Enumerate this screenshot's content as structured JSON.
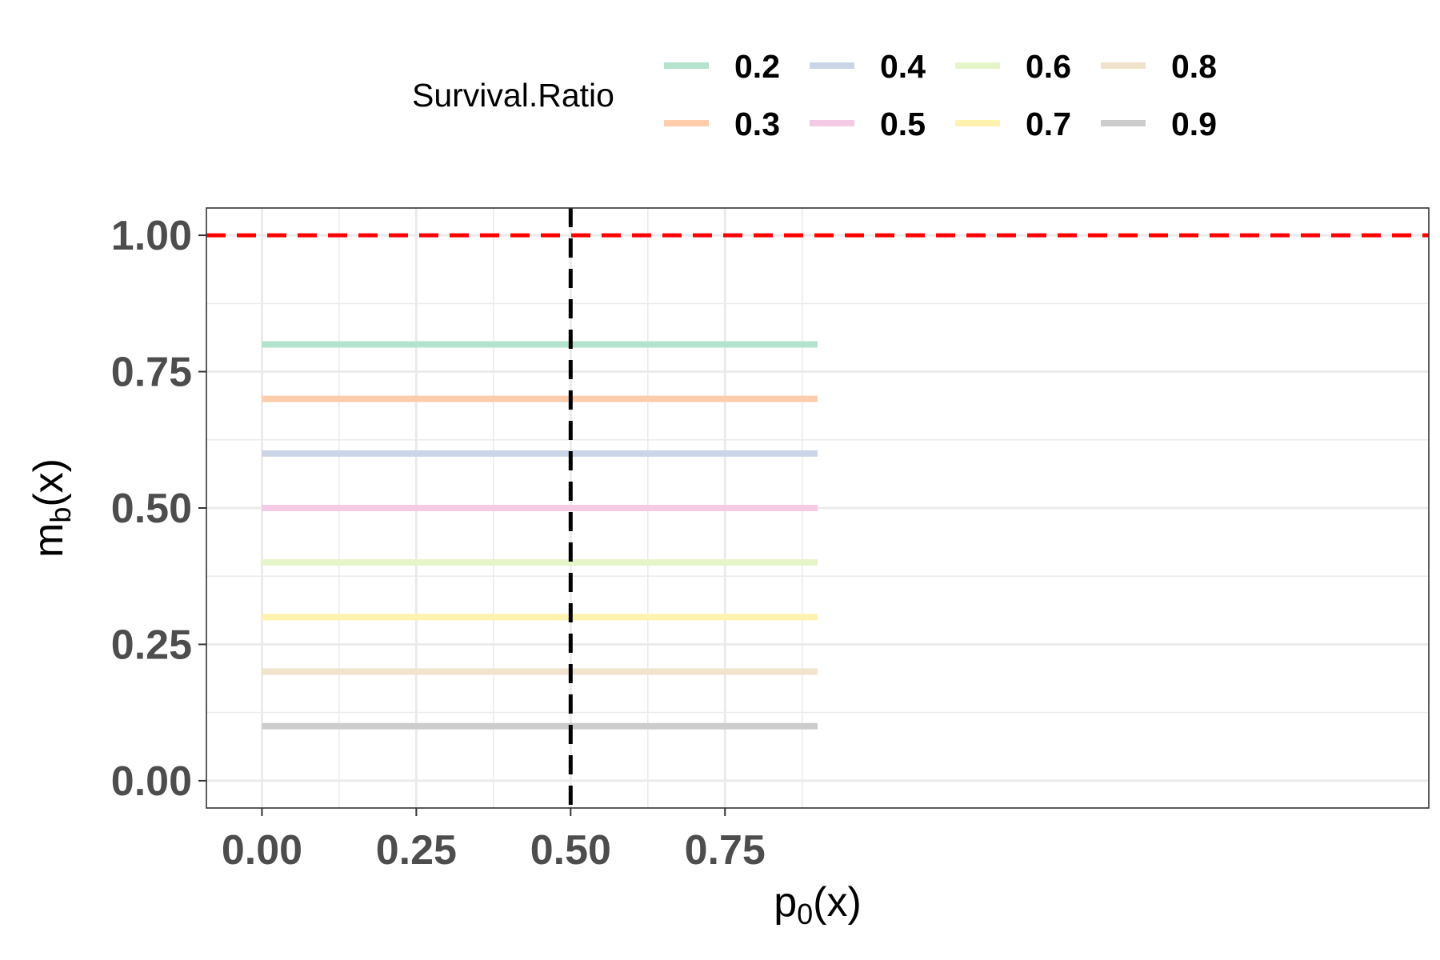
{
  "chart_data": {
    "type": "line",
    "xlabel": {
      "base": "p",
      "sub": "0",
      "suffix": "(x)"
    },
    "ylabel": {
      "base": "m",
      "sub": "b",
      "suffix": "(x)"
    },
    "xlim": [
      -0.09,
      1.89
    ],
    "ylim": [
      -0.05,
      1.05
    ],
    "x_ticks": [
      0.0,
      0.25,
      0.5,
      0.75
    ],
    "x_tick_labels": [
      "0.00",
      "0.25",
      "0.50",
      "0.75"
    ],
    "x_minor": [
      0.125,
      0.375,
      0.625,
      0.875
    ],
    "y_ticks": [
      0.0,
      0.25,
      0.5,
      0.75,
      1.0
    ],
    "y_tick_labels": [
      "0.00",
      "0.25",
      "0.50",
      "0.75",
      "1.00"
    ],
    "y_minor": [
      0.125,
      0.375,
      0.625,
      0.875
    ],
    "grid": true,
    "legend": {
      "title": "Survival.Ratio",
      "position": "top",
      "ncol": 4,
      "entries": [
        "0.2",
        "0.3",
        "0.4",
        "0.5",
        "0.6",
        "0.7",
        "0.8",
        "0.9"
      ]
    },
    "series": [
      {
        "name": "0.2",
        "color": "#b3e2cd",
        "x": [
          0,
          0.9
        ],
        "y": [
          0.8,
          0.8
        ]
      },
      {
        "name": "0.3",
        "color": "#fdcdac",
        "x": [
          0,
          0.9
        ],
        "y": [
          0.7,
          0.7
        ]
      },
      {
        "name": "0.4",
        "color": "#cbd5e8",
        "x": [
          0,
          0.9
        ],
        "y": [
          0.6,
          0.6
        ]
      },
      {
        "name": "0.5",
        "color": "#f4cae4",
        "x": [
          0,
          0.9
        ],
        "y": [
          0.5,
          0.5
        ]
      },
      {
        "name": "0.6",
        "color": "#e6f5c9",
        "x": [
          0,
          0.9
        ],
        "y": [
          0.4,
          0.4
        ]
      },
      {
        "name": "0.7",
        "color": "#fff2ae",
        "x": [
          0,
          0.9
        ],
        "y": [
          0.3,
          0.3
        ]
      },
      {
        "name": "0.8",
        "color": "#f1e2cc",
        "x": [
          0,
          0.9
        ],
        "y": [
          0.2,
          0.2
        ]
      },
      {
        "name": "0.9",
        "color": "#cccccc",
        "x": [
          0,
          0.9
        ],
        "y": [
          0.1,
          0.1
        ]
      }
    ],
    "reference_lines": [
      {
        "orientation": "horizontal",
        "value": 1.0,
        "color": "#ff0000",
        "style": "dashed"
      },
      {
        "orientation": "vertical",
        "value": 0.5,
        "color": "#000000",
        "style": "dashed"
      }
    ]
  }
}
